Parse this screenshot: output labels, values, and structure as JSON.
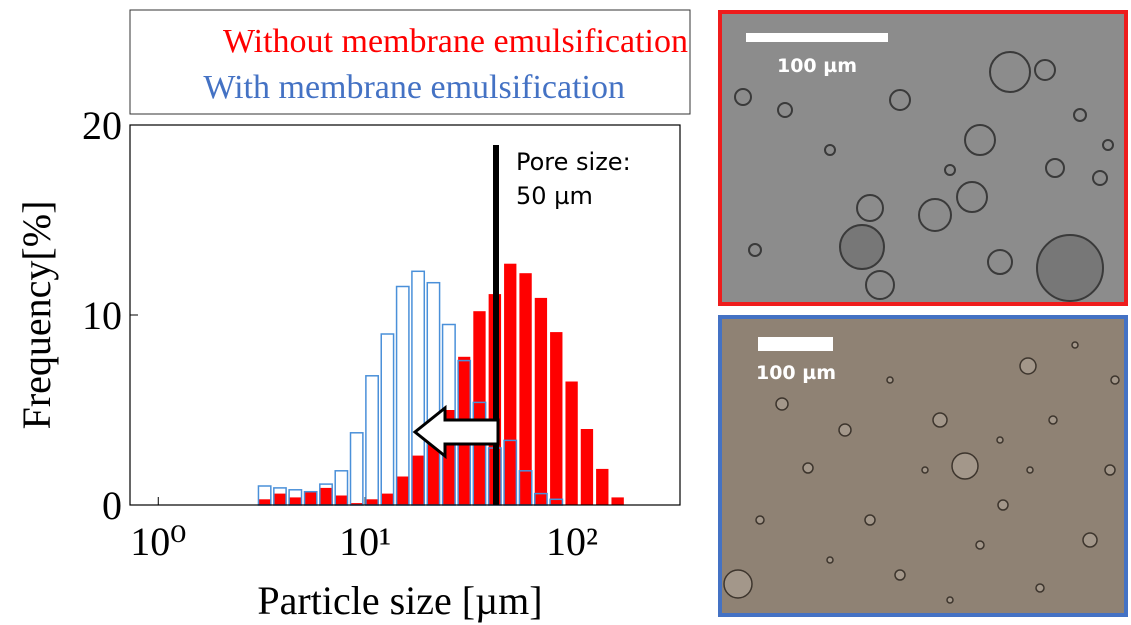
{
  "chart_data": {
    "type": "histogram",
    "ylabel": "Frequency[%]",
    "xlabel": "Particle size [µm]",
    "bins": [
      3.0,
      3.56,
      4.22,
      5.01,
      5.94,
      7.05,
      8.36,
      9.92,
      11.77,
      13.96,
      16.56,
      19.65,
      23.3,
      27.7,
      32.8,
      38.9,
      46.2,
      54.8,
      65.0,
      77.1,
      91.5,
      108.5,
      128.7,
      152.7,
      181.2
    ],
    "series": [
      {
        "name": "Without membrane emulsification",
        "color": "#ff0000",
        "filled": true,
        "values": [
          0.3,
          0.6,
          0.4,
          0.7,
          0.9,
          0.5,
          0.1,
          0.3,
          0.6,
          1.5,
          2.6,
          3.6,
          5.0,
          7.8,
          10.2,
          11.1,
          12.7,
          12.2,
          10.9,
          9.1,
          6.5,
          4.0,
          1.9,
          0.4
        ]
      },
      {
        "name": "With membrane emulsification",
        "color": "#4a90d9",
        "filled": false,
        "values": [
          1.0,
          0.9,
          0.8,
          0.7,
          1.1,
          1.8,
          3.8,
          6.8,
          9.0,
          11.5,
          12.3,
          11.7,
          9.5,
          7.6,
          5.4,
          3.0,
          3.4,
          1.8,
          0.6,
          0.3,
          0,
          0,
          0,
          0
        ]
      }
    ],
    "xlim": [
      0.73,
      333
    ],
    "xscale": "log",
    "xticks": [
      {
        "value": 1,
        "label": "10⁰"
      },
      {
        "value": 10,
        "label": "10¹"
      },
      {
        "value": 100,
        "label": "10²"
      }
    ],
    "ylim": [
      0,
      20
    ],
    "yticks": [
      0,
      10,
      20
    ],
    "annotation": [
      "Pore size:",
      "50 µm"
    ],
    "images": [
      {
        "scale_bar": "100 µm"
      },
      {
        "scale_bar": "100 µm"
      }
    ]
  }
}
